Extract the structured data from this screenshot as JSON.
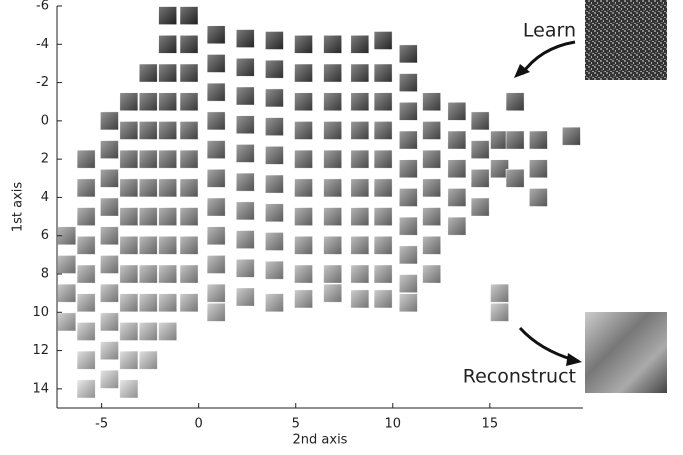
{
  "chart_data": {
    "type": "scatter",
    "x_label": "2nd axis",
    "y_label": "1st axis",
    "annotations": [
      "Learn",
      "Reconstruct"
    ],
    "xlim": [
      -7.3,
      19.8
    ],
    "ylim": [
      -6,
      15
    ],
    "y_inverted": true,
    "xticks": [
      -5,
      0,
      5,
      10,
      15
    ],
    "yticks": [
      -6,
      -4,
      -2,
      0,
      2,
      4,
      6,
      8,
      10,
      12,
      14
    ],
    "series": [
      {
        "x": -6.8,
        "values": [
          6,
          7.5,
          9,
          10.5
        ]
      },
      {
        "x": -5.8,
        "values": [
          2,
          3.5,
          5,
          6.5,
          8,
          9.5,
          11,
          12.5,
          14
        ]
      },
      {
        "x": -4.6,
        "values": [
          0,
          1.5,
          3,
          4.5,
          6,
          7.5,
          9,
          10.5,
          12,
          13.5
        ]
      },
      {
        "x": -3.6,
        "values": [
          -1,
          0.5,
          2,
          3.5,
          5,
          6.5,
          8,
          9.5,
          11,
          12.5,
          14
        ]
      },
      {
        "x": -2.6,
        "values": [
          -2.5,
          -1,
          0.5,
          2,
          3.5,
          5,
          6.5,
          8,
          9.5,
          11,
          12.5
        ]
      },
      {
        "x": -1.6,
        "values": [
          -5.5,
          -4,
          -2.5,
          -1,
          0.5,
          2,
          3.5,
          5,
          6.5,
          8,
          9.5,
          11
        ]
      },
      {
        "x": -0.5,
        "values": [
          -5.5,
          -4,
          -2.5,
          -1,
          0.5,
          2,
          3.5,
          5,
          6.5,
          8,
          9.5
        ]
      },
      {
        "x": 0.9,
        "values": [
          -4.5,
          -3,
          -1.5,
          0,
          1.5,
          3,
          4.5,
          6,
          7.5,
          9,
          10
        ]
      },
      {
        "x": 2.4,
        "values": [
          -4.3,
          -2.8,
          -1.3,
          0.2,
          1.7,
          3.2,
          4.7,
          6.2,
          7.7,
          9.2
        ]
      },
      {
        "x": 3.9,
        "values": [
          -4.2,
          -2.7,
          -1.2,
          0.3,
          1.8,
          3.3,
          4.8,
          6.3,
          7.8,
          9.5
        ]
      },
      {
        "x": 5.4,
        "values": [
          -4,
          -2.5,
          -1,
          0.5,
          2,
          3.5,
          5,
          6.5,
          8,
          9.3
        ]
      },
      {
        "x": 6.9,
        "values": [
          -4,
          -2.5,
          -1,
          0.5,
          2,
          3.5,
          5,
          6.5,
          8,
          9
        ]
      },
      {
        "x": 8.3,
        "values": [
          -4,
          -2.5,
          -1,
          0.5,
          2,
          3.5,
          5,
          6.5,
          8,
          9.3
        ]
      },
      {
        "x": 9.5,
        "values": [
          -4.2,
          -2.5,
          -1,
          0.5,
          2,
          3.5,
          5,
          6.5,
          8,
          9.3
        ]
      },
      {
        "x": 10.8,
        "values": [
          -3.5,
          -2,
          -0.5,
          1,
          2.5,
          4,
          5.5,
          7,
          8.5,
          9.5
        ]
      },
      {
        "x": 12,
        "values": [
          -1,
          0.5,
          2,
          3.5,
          5,
          6.5,
          8
        ]
      },
      {
        "x": 13.3,
        "values": [
          -0.5,
          1,
          2.5,
          4,
          5.5
        ]
      },
      {
        "x": 14.5,
        "values": [
          0,
          1.5,
          3,
          4.5
        ]
      },
      {
        "x": 15.5,
        "values": [
          1,
          2.5,
          9,
          10
        ]
      },
      {
        "x": 16.3,
        "values": [
          -1,
          1,
          3
        ]
      },
      {
        "x": 17.5,
        "values": [
          1,
          2.5,
          4
        ]
      },
      {
        "x": 19.2,
        "values": [
          0.8
        ]
      }
    ]
  }
}
